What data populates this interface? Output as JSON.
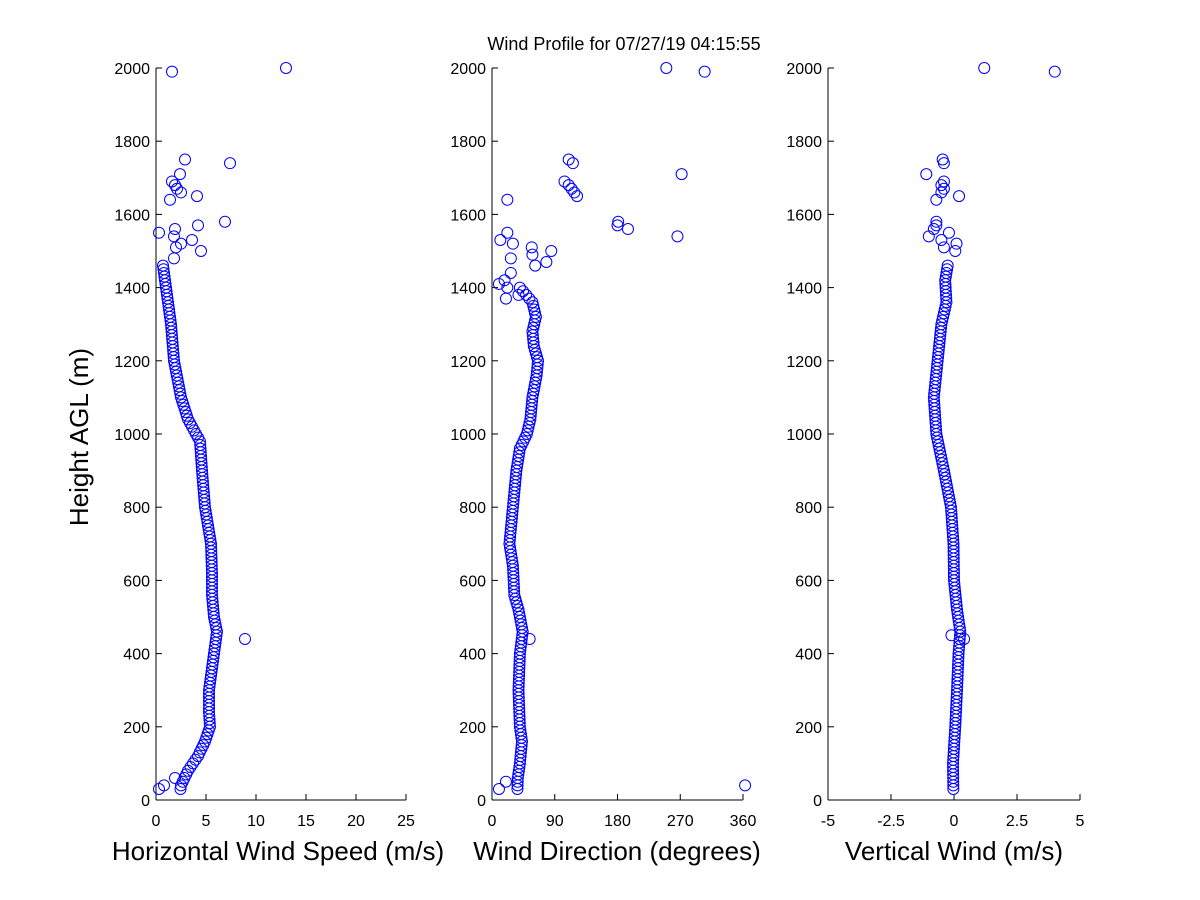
{
  "chart_data": {
    "title": "Wind Profile for  07/27/19 04:15:55",
    "ylabel": "Height AGL (m)",
    "ylim": [
      0,
      2000
    ],
    "yticks": [
      0,
      200,
      400,
      600,
      800,
      1000,
      1200,
      1400,
      1600,
      1800,
      2000
    ],
    "ytick_labels": [
      "0",
      "200",
      "400",
      "600",
      "800",
      "1000",
      "1200",
      "1400",
      "1600",
      "1800",
      "2000"
    ],
    "marker_color": "#0000ff",
    "panels": [
      {
        "type": "scatter",
        "xlabel": "Horizontal Wind Speed (m/s)",
        "xlim": [
          0,
          25
        ],
        "xticks": [
          0,
          5,
          10,
          15,
          20,
          25
        ],
        "xtick_labels": [
          "0",
          "5",
          "10",
          "15",
          "20",
          "25"
        ],
        "profile": [
          [
            0,
            2.3
          ],
          [
            40,
            2.5
          ],
          [
            80,
            3.2
          ],
          [
            120,
            4.2
          ],
          [
            160,
            4.9
          ],
          [
            200,
            5.4
          ],
          [
            240,
            5.3
          ],
          [
            300,
            5.3
          ],
          [
            400,
            5.8
          ],
          [
            440,
            6.0
          ],
          [
            460,
            6.1
          ],
          [
            500,
            5.8
          ],
          [
            560,
            5.6
          ],
          [
            620,
            5.6
          ],
          [
            700,
            5.5
          ],
          [
            800,
            4.9
          ],
          [
            900,
            4.6
          ],
          [
            980,
            4.4
          ],
          [
            1040,
            3.2
          ],
          [
            1100,
            2.5
          ],
          [
            1200,
            1.8
          ],
          [
            1300,
            1.5
          ],
          [
            1400,
            1.0
          ],
          [
            1460,
            0.7
          ]
        ],
        "extras": [
          [
            30,
            0.3
          ],
          [
            40,
            0.8
          ],
          [
            60,
            1.9
          ],
          [
            440,
            8.9
          ],
          [
            1480,
            1.8
          ],
          [
            1500,
            4.5
          ],
          [
            1510,
            2.0
          ],
          [
            1520,
            2.5
          ],
          [
            1530,
            3.6
          ],
          [
            1540,
            1.8
          ],
          [
            1550,
            0.3
          ],
          [
            1560,
            1.9
          ],
          [
            1570,
            4.2
          ],
          [
            1580,
            6.9
          ],
          [
            1640,
            1.4
          ],
          [
            1650,
            4.1
          ],
          [
            1660,
            2.5
          ],
          [
            1670,
            2.1
          ],
          [
            1680,
            1.9
          ],
          [
            1690,
            1.6
          ],
          [
            1710,
            2.4
          ],
          [
            1740,
            7.4
          ],
          [
            1750,
            2.9
          ],
          [
            1990,
            1.6
          ],
          [
            2000,
            13.0
          ]
        ]
      },
      {
        "type": "scatter",
        "xlabel": "Wind Direction (degrees)",
        "xlim": [
          0,
          360
        ],
        "xticks": [
          0,
          90,
          180,
          270,
          360
        ],
        "xtick_labels": [
          "0",
          "90",
          "180",
          "270",
          "360"
        ],
        "profile": [
          [
            0,
            36
          ],
          [
            60,
            37
          ],
          [
            100,
            40
          ],
          [
            160,
            43
          ],
          [
            200,
            40
          ],
          [
            300,
            38
          ],
          [
            400,
            40
          ],
          [
            460,
            44
          ],
          [
            520,
            38
          ],
          [
            560,
            32
          ],
          [
            640,
            30
          ],
          [
            700,
            25
          ],
          [
            760,
            28
          ],
          [
            820,
            31
          ],
          [
            900,
            35
          ],
          [
            960,
            40
          ],
          [
            1000,
            50
          ],
          [
            1040,
            55
          ],
          [
            1100,
            58
          ],
          [
            1160,
            64
          ],
          [
            1200,
            66
          ],
          [
            1240,
            60
          ],
          [
            1280,
            58
          ],
          [
            1320,
            63
          ],
          [
            1360,
            58
          ],
          [
            1400,
            40
          ]
        ],
        "extras": [
          [
            30,
            10
          ],
          [
            40,
            363
          ],
          [
            50,
            20
          ],
          [
            440,
            54
          ],
          [
            1370,
            20
          ],
          [
            1380,
            38
          ],
          [
            1400,
            22
          ],
          [
            1410,
            10
          ],
          [
            1420,
            18
          ],
          [
            1440,
            27
          ],
          [
            1460,
            62
          ],
          [
            1470,
            78
          ],
          [
            1480,
            27
          ],
          [
            1490,
            58
          ],
          [
            1500,
            85
          ],
          [
            1510,
            57
          ],
          [
            1520,
            30
          ],
          [
            1530,
            12
          ],
          [
            1540,
            266
          ],
          [
            1550,
            22
          ],
          [
            1560,
            195
          ],
          [
            1570,
            180
          ],
          [
            1580,
            181
          ],
          [
            1640,
            22
          ],
          [
            1650,
            122
          ],
          [
            1660,
            118
          ],
          [
            1670,
            114
          ],
          [
            1680,
            110
          ],
          [
            1690,
            104
          ],
          [
            1710,
            272
          ],
          [
            1740,
            116
          ],
          [
            1750,
            110
          ],
          [
            1990,
            305
          ],
          [
            2000,
            250
          ]
        ]
      },
      {
        "type": "scatter",
        "xlabel": "Vertical Wind (m/s)",
        "xlim": [
          -5,
          5
        ],
        "xticks": [
          -5,
          -2.5,
          0,
          2.5,
          5
        ],
        "xtick_labels": [
          "-5",
          "-2.5",
          "0",
          "2.5",
          "5"
        ],
        "profile": [
          [
            0,
            -0.02
          ],
          [
            100,
            -0.04
          ],
          [
            200,
            0.05
          ],
          [
            300,
            0.12
          ],
          [
            400,
            0.18
          ],
          [
            460,
            0.25
          ],
          [
            520,
            0.12
          ],
          [
            600,
            0.0
          ],
          [
            700,
            -0.02
          ],
          [
            800,
            -0.12
          ],
          [
            900,
            -0.4
          ],
          [
            1000,
            -0.7
          ],
          [
            1100,
            -0.8
          ],
          [
            1200,
            -0.65
          ],
          [
            1300,
            -0.5
          ],
          [
            1360,
            -0.3
          ],
          [
            1420,
            -0.35
          ],
          [
            1480,
            -0.2
          ]
        ],
        "extras": [
          [
            440,
            0.4
          ],
          [
            450,
            -0.1
          ],
          [
            1500,
            0.05
          ],
          [
            1510,
            -0.4
          ],
          [
            1520,
            0.1
          ],
          [
            1530,
            -0.5
          ],
          [
            1540,
            -1.0
          ],
          [
            1550,
            -0.2
          ],
          [
            1560,
            -0.8
          ],
          [
            1570,
            -0.7
          ],
          [
            1580,
            -0.7
          ],
          [
            1640,
            -0.7
          ],
          [
            1650,
            0.2
          ],
          [
            1660,
            -0.5
          ],
          [
            1670,
            -0.4
          ],
          [
            1680,
            -0.5
          ],
          [
            1690,
            -0.4
          ],
          [
            1710,
            -1.1
          ],
          [
            1740,
            -0.4
          ],
          [
            1750,
            -0.45
          ],
          [
            1990,
            4.0
          ],
          [
            2000,
            1.2
          ]
        ]
      }
    ]
  }
}
